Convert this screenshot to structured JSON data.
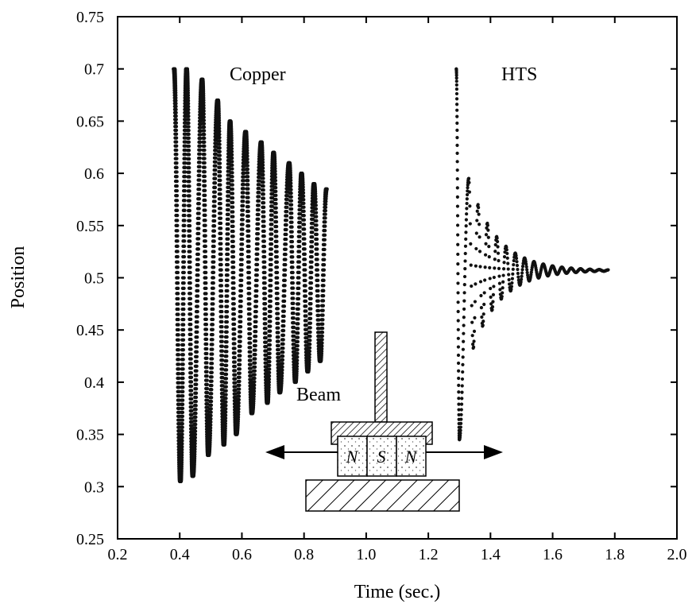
{
  "chart_data": {
    "type": "scatter",
    "xlabel": "Time (sec.)",
    "ylabel": "Position",
    "xlim": [
      0.2,
      2.0
    ],
    "ylim": [
      0.25,
      0.75
    ],
    "xticks": [
      "0.2",
      "0.4",
      "0.6",
      "0.8",
      "1.0",
      "1.2",
      "1.4",
      "1.6",
      "1.8",
      "2.0"
    ],
    "yticks": [
      "0.25",
      "0.3",
      "0.35",
      "0.4",
      "0.45",
      "0.5",
      "0.55",
      "0.6",
      "0.65",
      "0.7",
      "0.75"
    ],
    "grid": false,
    "series": [
      {
        "name": "Copper",
        "color": "#111111",
        "x_range": [
          0.38,
          0.88
        ],
        "peaks": [
          {
            "x": 0.38,
            "y": 0.7
          },
          {
            "x": 0.42,
            "y": 0.7
          },
          {
            "x": 0.47,
            "y": 0.69
          },
          {
            "x": 0.52,
            "y": 0.67
          },
          {
            "x": 0.56,
            "y": 0.65
          },
          {
            "x": 0.61,
            "y": 0.64
          },
          {
            "x": 0.66,
            "y": 0.63
          },
          {
            "x": 0.7,
            "y": 0.62
          },
          {
            "x": 0.75,
            "y": 0.61
          },
          {
            "x": 0.79,
            "y": 0.6
          },
          {
            "x": 0.83,
            "y": 0.59
          },
          {
            "x": 0.87,
            "y": 0.585
          }
        ],
        "troughs": [
          {
            "x": 0.4,
            "y": 0.305
          },
          {
            "x": 0.44,
            "y": 0.31
          },
          {
            "x": 0.49,
            "y": 0.33
          },
          {
            "x": 0.54,
            "y": 0.34
          },
          {
            "x": 0.58,
            "y": 0.35
          },
          {
            "x": 0.63,
            "y": 0.37
          },
          {
            "x": 0.68,
            "y": 0.38
          },
          {
            "x": 0.72,
            "y": 0.39
          },
          {
            "x": 0.77,
            "y": 0.4
          },
          {
            "x": 0.81,
            "y": 0.41
          },
          {
            "x": 0.85,
            "y": 0.42
          }
        ]
      },
      {
        "name": "HTS",
        "color": "#111111",
        "x_range": [
          1.29,
          1.78
        ],
        "initial_y": 0.7,
        "first_trough": {
          "x": 1.3,
          "y": 0.345
        },
        "first_peak": {
          "x": 1.33,
          "y": 0.595
        },
        "settled_y": 0.507
      }
    ],
    "annotations": [
      "Copper",
      "HTS",
      "Beam"
    ],
    "inset_labels": [
      "N",
      "S",
      "N"
    ]
  }
}
